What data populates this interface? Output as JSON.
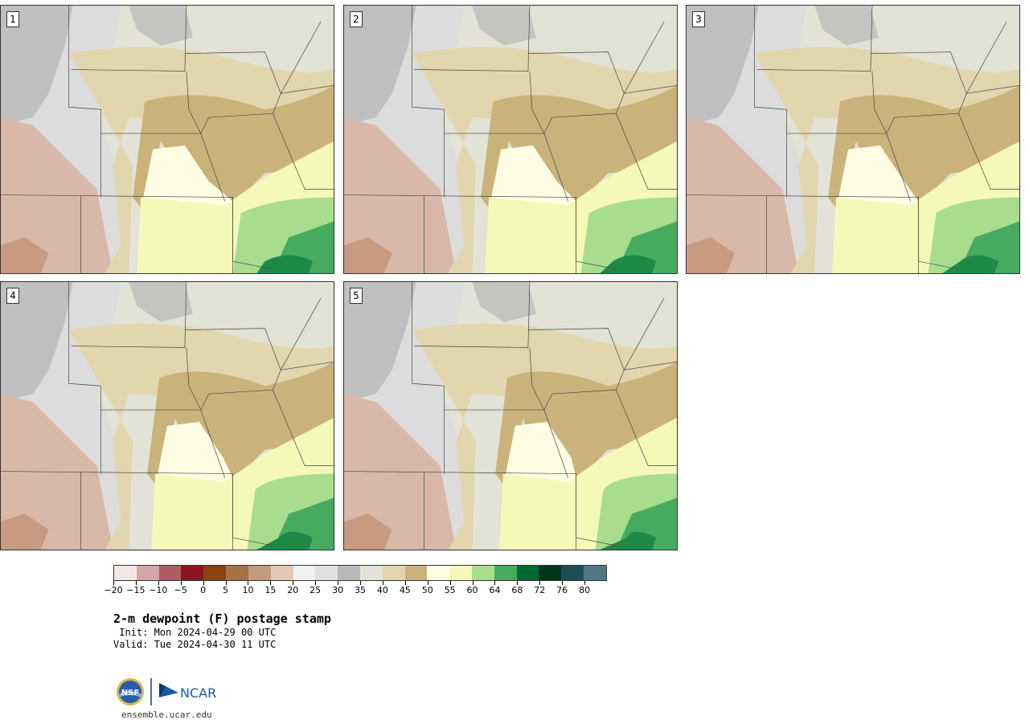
{
  "panels": [
    {
      "label": "1"
    },
    {
      "label": "2"
    },
    {
      "label": "3"
    },
    {
      "label": "4"
    },
    {
      "label": "5"
    }
  ],
  "colorbar": {
    "colors": [
      "#f4e6e6",
      "#d4a6a8",
      "#b05a64",
      "#8a1520",
      "#8a4210",
      "#a87248",
      "#c49a7e",
      "#e2c8b6",
      "#f1f1f1",
      "#e0e0e0",
      "#b8b8b8",
      "#e2e2d6",
      "#e2d6ae",
      "#cab37a",
      "#fffde4",
      "#f5f9b8",
      "#a9dd8e",
      "#46ab5e",
      "#006a35",
      "#00361e",
      "#1c4e58",
      "#507882"
    ],
    "ticks": [
      "−20",
      "−15",
      "−10",
      "−5",
      "0",
      "5",
      "10",
      "15",
      "20",
      "25",
      "30",
      "35",
      "40",
      "45",
      "50",
      "55",
      "60",
      "64",
      "68",
      "72",
      "76",
      "80"
    ]
  },
  "title": "2-m dewpoint (F) postage stamp",
  "init": " Init: Mon 2024-04-29 00 UTC",
  "valid": "Valid: Tue 2024-04-30 11 UTC",
  "logos": {
    "nsf": "NSF",
    "ncar": "NCAR"
  },
  "url": "ensemble.ucar.edu"
}
